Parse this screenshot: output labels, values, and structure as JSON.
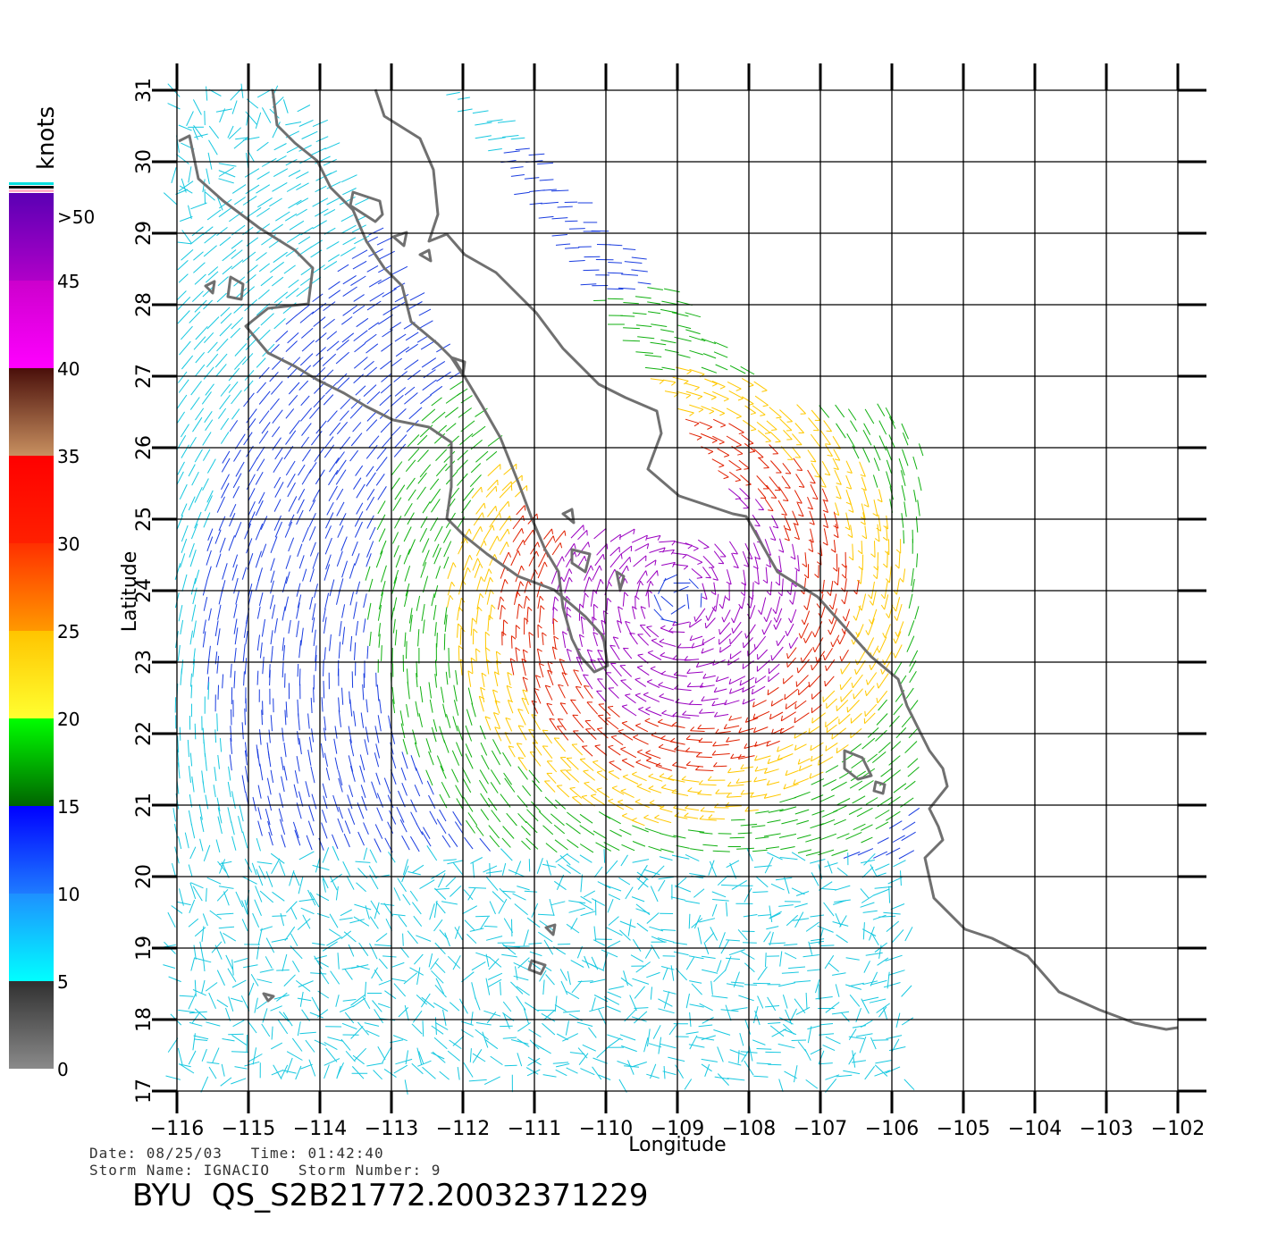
{
  "axes": {
    "x_title": "Longitude",
    "y_title": "Latitude",
    "x_ticks": [
      "−116",
      "−115",
      "−114",
      "−113",
      "−112",
      "−111",
      "−110",
      "−109",
      "−108",
      "−107",
      "−106",
      "−105",
      "−104",
      "−103",
      "−102"
    ],
    "y_ticks": [
      "17",
      "18",
      "19",
      "20",
      "21",
      "22",
      "23",
      "24",
      "25",
      "26",
      "27",
      "28",
      "29",
      "30",
      "31"
    ],
    "lon_range": [
      -116,
      -101.6
    ],
    "lat_range": [
      17,
      31
    ]
  },
  "colorbar": {
    "title": "knots",
    "labels": [
      "0",
      "5",
      "10",
      "15",
      "20",
      "25",
      "30",
      "35",
      "40",
      "45",
      ">50"
    ],
    "segments": [
      {
        "from": 0,
        "to": 5,
        "top": "#303030",
        "bottom": "#8a8a8a"
      },
      {
        "from": 5,
        "to": 10,
        "top": "#1e90ff",
        "bottom": "#00ffff"
      },
      {
        "from": 10,
        "to": 15,
        "top": "#0000ff",
        "bottom": "#1e7bff"
      },
      {
        "from": 15,
        "to": 20,
        "top": "#00ff00",
        "bottom": "#006400"
      },
      {
        "from": 20,
        "to": 25,
        "top": "#ffc400",
        "bottom": "#ffff30"
      },
      {
        "from": 25,
        "to": 30,
        "top": "#ff3000",
        "bottom": "#ff9900"
      },
      {
        "from": 30,
        "to": 35,
        "top": "#ff0000",
        "bottom": "#ff2000"
      },
      {
        "from": 35,
        "to": 40,
        "top": "#4a0f0a",
        "bottom": "#c89060"
      },
      {
        "from": 40,
        "to": 45,
        "top": "#cc00cc",
        "bottom": "#ff00ff"
      },
      {
        "from": 45,
        "to": 50,
        "top": "#5a00b4",
        "bottom": "#b000c8"
      }
    ]
  },
  "storm": {
    "center_lon": -109.0,
    "center_lat": 23.9
  },
  "colors": {
    "coastline": "#707070",
    "grid": "#000000",
    "calm": "#333333",
    "light": "#17c8e0",
    "moderate": "#1a3de0",
    "fresh": "#10b010",
    "strong": "#ffc800",
    "gale": "#e02000",
    "storm": "#9a00c0"
  },
  "footer": {
    "date_line": "Date: 08/25/03   Time: 01:42:40",
    "storm_line": "Storm Name: IGNACIO   Storm Number: 9",
    "id_line": "BYU  QS_S2B21772.20032371229"
  }
}
